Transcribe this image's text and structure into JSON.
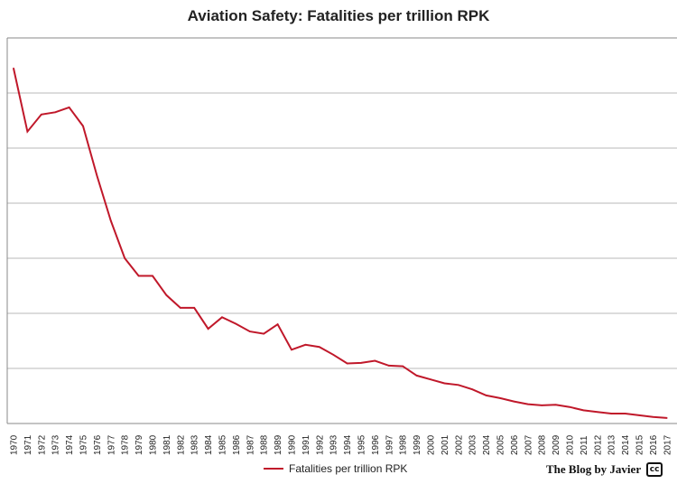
{
  "chart_data": {
    "type": "line",
    "title": "Aviation Safety: Fatalities per trillion RPK",
    "xlabel": "",
    "ylabel": "",
    "x": [
      "1970",
      "1971",
      "1972",
      "1973",
      "1974",
      "1975",
      "1976",
      "1977",
      "1978",
      "1979",
      "1980",
      "1981",
      "1982",
      "1983",
      "1984",
      "1985",
      "1986",
      "1987",
      "1988",
      "1989",
      "1990",
      "1991",
      "1992",
      "1993",
      "1994",
      "1995",
      "1996",
      "1997",
      "1998",
      "1999",
      "2000",
      "2001",
      "2002",
      "2003",
      "2004",
      "2005",
      "2006",
      "2007",
      "2008",
      "2009",
      "2010",
      "2011",
      "2012",
      "2013",
      "2014",
      "2015",
      "2016",
      "2017"
    ],
    "series": [
      {
        "name": "Fatalities per trillion RPK",
        "color": "#c0182a",
        "values": [
          645,
          530,
          561,
          565,
          574,
          540,
          450,
          368,
          300,
          268,
          268,
          233,
          210,
          210,
          172,
          193,
          181,
          167,
          163,
          180,
          134,
          143,
          139,
          125,
          109,
          110,
          114,
          105,
          104,
          87,
          80,
          73,
          70,
          62,
          51,
          46,
          40,
          35,
          33,
          34,
          30,
          24,
          21,
          18,
          18,
          15,
          12,
          10
        ]
      }
    ],
    "ylim": [
      0,
      700
    ],
    "grid": true,
    "legend_position": "bottom",
    "watermark": "The Blog by Javier",
    "badge": "cc"
  }
}
